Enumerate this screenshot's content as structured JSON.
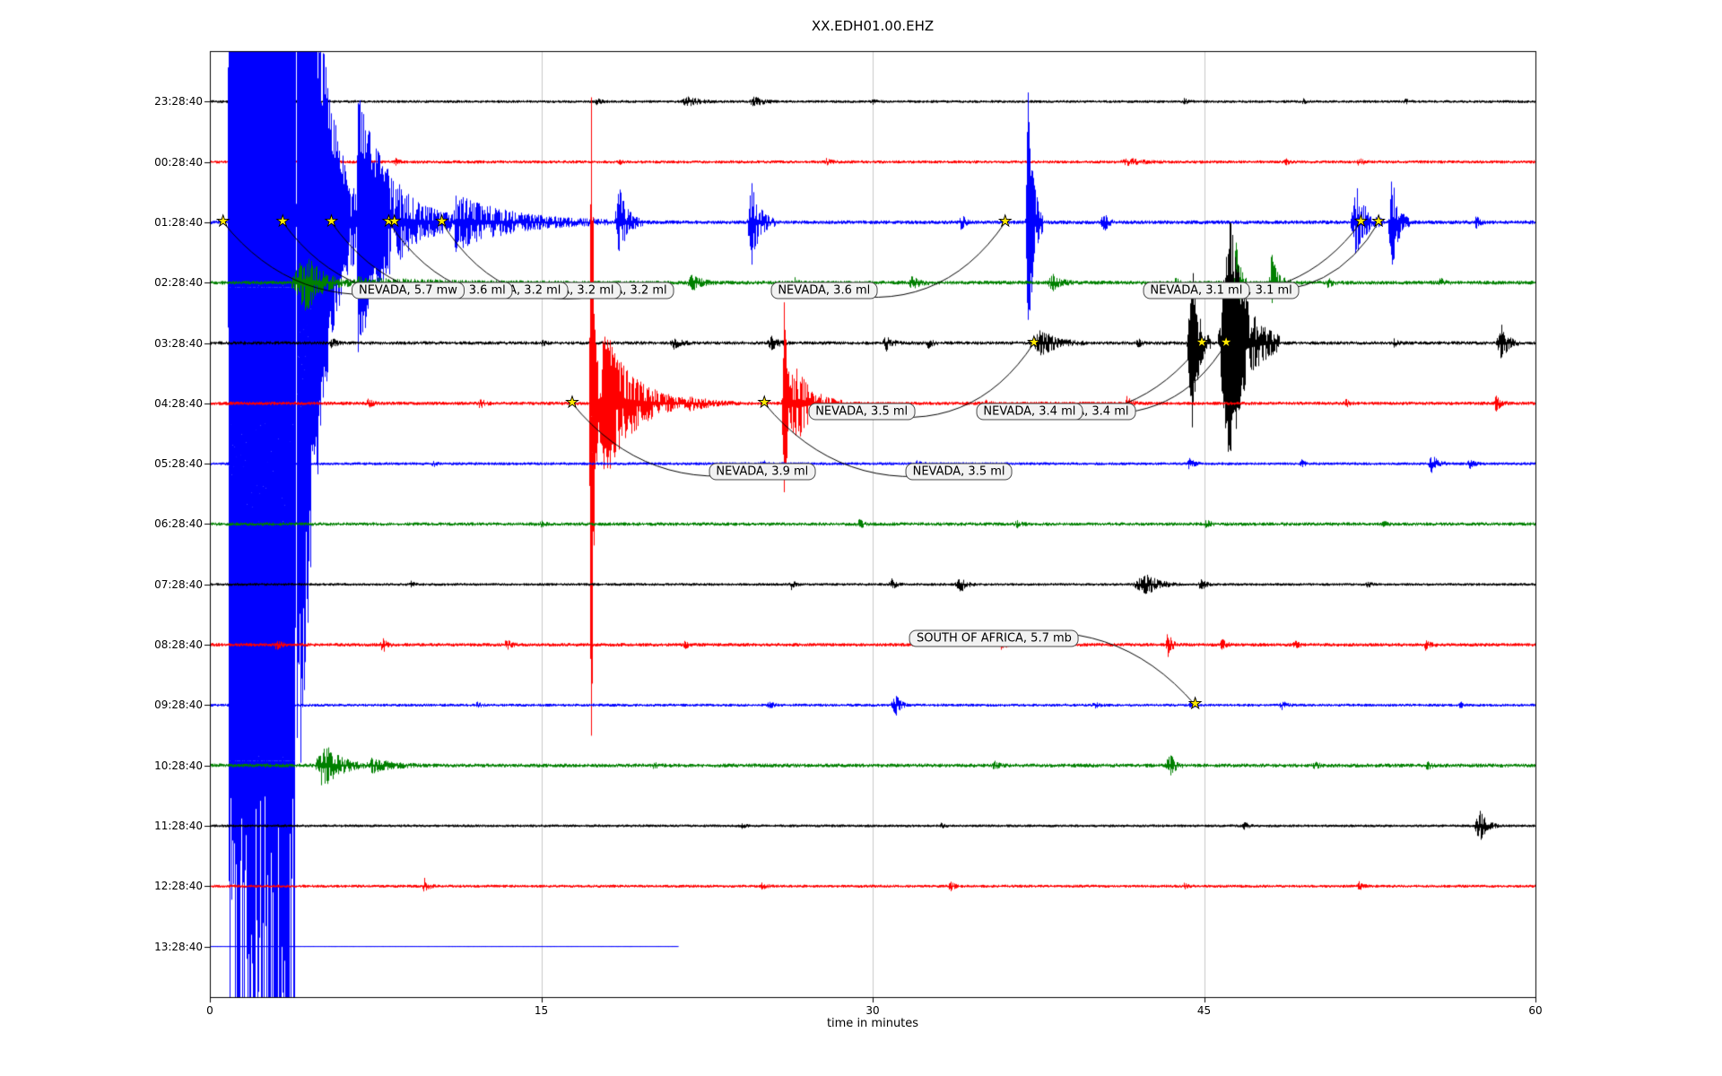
{
  "chart_data": {
    "type": "line",
    "subtype": "seismogram-dayplot",
    "title": "XX.EDH01.00.EHZ",
    "xlabel": "time in minutes",
    "x_range_minutes": [
      0,
      60
    ],
    "x_tick_minutes": [
      0,
      15,
      30,
      45,
      60
    ],
    "x_tick_labels": [
      "0",
      "15",
      "30",
      "45",
      "60"
    ],
    "x_gridlines": [
      15,
      30,
      45
    ],
    "trace_color_cycle": [
      "#000000",
      "#ff0000",
      "#0000ff",
      "#008000"
    ],
    "style": {
      "grid_color": "#c8c8c8",
      "star_color": "#ffe800",
      "annotation_bg": "#f2f2f2",
      "annotation_border": "#4a4a4a"
    },
    "rows": [
      {
        "label": "23:28:40",
        "color": "#000000",
        "base": 1.6,
        "bursts": [
          [
            17.4,
            17.5,
            18.1,
            3
          ],
          [
            21.3,
            21.6,
            23.3,
            4.5
          ],
          [
            24.4,
            24.6,
            25.7,
            5.5
          ],
          [
            29.9,
            30,
            30.4,
            2.5
          ],
          [
            44,
            44.1,
            44.6,
            3
          ],
          [
            49.4,
            49.5,
            49.9,
            2.5
          ],
          [
            54,
            54.1,
            54.6,
            2.5
          ]
        ]
      },
      {
        "label": "00:28:40",
        "color": "#ff0000",
        "base": 1.8,
        "bursts": [
          [
            8.3,
            8.4,
            8.9,
            3
          ],
          [
            18.4,
            18.5,
            18.9,
            2.5
          ],
          [
            27.8,
            27.9,
            28.4,
            3
          ],
          [
            41.2,
            41.6,
            43.2,
            3.5
          ],
          [
            48.6,
            48.7,
            49.1,
            2.5
          ],
          [
            51.9,
            52,
            52.5,
            4
          ]
        ]
      },
      {
        "label": "01:28:40",
        "color": "#0000ff",
        "base": 2.2,
        "bursts": [
          [
            0.8,
            0.9,
            3.9,
            1150,
            1
          ],
          [
            3.9,
            3.95,
            6.6,
            800
          ],
          [
            6.6,
            6.7,
            11,
            150
          ],
          [
            11,
            11.1,
            18,
            32
          ],
          [
            18.3,
            18.5,
            19.6,
            42
          ],
          [
            24.3,
            24.5,
            25.6,
            48
          ],
          [
            33.9,
            34,
            34.4,
            10
          ],
          [
            36.9,
            37,
            37.7,
            170
          ],
          [
            40.3,
            40.4,
            40.9,
            16
          ],
          [
            51.6,
            51.9,
            53.1,
            42
          ],
          [
            53.3,
            53.5,
            54.3,
            55
          ],
          [
            57.2,
            57.3,
            57.7,
            8
          ]
        ]
      },
      {
        "label": "02:28:40",
        "color": "#008000",
        "base": 2.2,
        "bursts": [
          [
            3.6,
            4.3,
            6.5,
            34
          ],
          [
            6.5,
            6.6,
            16,
            5
          ],
          [
            21.6,
            21.8,
            22.9,
            9
          ],
          [
            26.3,
            26.4,
            26.9,
            6
          ],
          [
            31.6,
            31.8,
            32.7,
            7
          ],
          [
            37.9,
            38.1,
            39.1,
            9
          ],
          [
            43.6,
            43.7,
            44.1,
            5
          ],
          [
            46.3,
            46.45,
            46.9,
            62
          ],
          [
            47.9,
            48.05,
            48.9,
            32
          ],
          [
            50.5,
            50.6,
            51.1,
            6
          ],
          [
            55.6,
            55.7,
            56.2,
            5
          ]
        ]
      },
      {
        "label": "03:28:40",
        "color": "#000000",
        "base": 2.0,
        "bursts": [
          [
            5.4,
            5.5,
            6.1,
            5
          ],
          [
            14.9,
            15,
            15.4,
            3
          ],
          [
            20.8,
            21,
            21.9,
            6
          ],
          [
            25.2,
            25.4,
            26.3,
            7
          ],
          [
            30.4,
            30.6,
            31.3,
            8
          ],
          [
            32.4,
            32.5,
            33.1,
            5
          ],
          [
            37.2,
            37.6,
            39.6,
            15
          ],
          [
            41.9,
            42,
            42.4,
            5
          ],
          [
            44.2,
            44.45,
            45.3,
            95
          ],
          [
            45.6,
            46.1,
            48.4,
            150
          ],
          [
            53.5,
            53.6,
            54,
            4
          ],
          [
            58.2,
            58.45,
            59.3,
            19
          ]
        ]
      },
      {
        "label": "04:28:40",
        "color": "#ff0000",
        "base": 2.0,
        "bursts": [
          [
            7,
            7.1,
            7.7,
            5
          ],
          [
            12.1,
            12.2,
            12.8,
            5
          ],
          [
            17.15,
            17.25,
            17.55,
            520
          ],
          [
            17.3,
            17.9,
            21.6,
            85
          ],
          [
            21.6,
            21.7,
            24,
            9
          ],
          [
            25.85,
            26,
            26.4,
            135
          ],
          [
            26.1,
            26.6,
            28.6,
            42
          ],
          [
            35,
            35.1,
            35.6,
            4
          ],
          [
            41.4,
            41.5,
            42.1,
            7
          ],
          [
            51.3,
            51.4,
            51.8,
            4
          ],
          [
            58.1,
            58.2,
            58.8,
            8
          ]
        ]
      },
      {
        "label": "05:28:40",
        "color": "#0000ff",
        "base": 1.7,
        "bursts": [
          [
            10,
            10.1,
            10.5,
            3
          ],
          [
            24.9,
            25,
            25.5,
            4
          ],
          [
            31.9,
            32,
            32.4,
            3
          ],
          [
            44.2,
            44.3,
            44.9,
            6
          ],
          [
            49.3,
            49.4,
            49.8,
            3.5
          ],
          [
            55.1,
            55.3,
            56,
            10
          ],
          [
            56.9,
            57,
            57.5,
            6
          ]
        ]
      },
      {
        "label": "06:28:40",
        "color": "#008000",
        "base": 2.0,
        "bursts": [
          [
            14.9,
            15,
            15.4,
            3
          ],
          [
            29.2,
            29.35,
            29.9,
            6
          ],
          [
            36.4,
            36.5,
            37,
            4
          ],
          [
            45,
            45.1,
            45.6,
            4
          ],
          [
            53,
            53.1,
            53.5,
            3
          ]
        ]
      },
      {
        "label": "07:28:40",
        "color": "#000000",
        "base": 1.6,
        "bursts": [
          [
            9,
            9.1,
            9.5,
            3
          ],
          [
            26.2,
            26.3,
            26.8,
            5
          ],
          [
            30.7,
            30.85,
            31.4,
            6
          ],
          [
            33.7,
            34,
            34.7,
            8
          ],
          [
            41.7,
            42.4,
            43.9,
            11
          ],
          [
            44.7,
            44.85,
            45.4,
            7
          ],
          [
            52.3,
            52.4,
            52.8,
            3
          ]
        ]
      },
      {
        "label": "08:28:40",
        "color": "#ff0000",
        "base": 2.0,
        "bursts": [
          [
            2.9,
            3,
            3.5,
            6
          ],
          [
            7.7,
            7.8,
            8.3,
            9
          ],
          [
            13.3,
            13.4,
            13.9,
            6
          ],
          [
            21.4,
            21.5,
            21.9,
            4
          ],
          [
            35.7,
            35.8,
            36.3,
            6
          ],
          [
            43.2,
            43.35,
            43.9,
            13
          ],
          [
            45.7,
            45.8,
            46.3,
            6
          ],
          [
            49,
            49.1,
            49.6,
            4
          ],
          [
            54.9,
            55,
            55.6,
            5
          ]
        ]
      },
      {
        "label": "09:28:40",
        "color": "#0000ff",
        "base": 1.7,
        "bursts": [
          [
            12,
            12.1,
            12.5,
            3
          ],
          [
            25.2,
            25.3,
            25.8,
            5
          ],
          [
            30.8,
            31.05,
            31.6,
            11
          ],
          [
            39.9,
            40,
            40.5,
            4
          ],
          [
            44.3,
            44.4,
            44.8,
            3
          ],
          [
            48.4,
            48.5,
            49,
            5
          ],
          [
            56.5,
            56.6,
            57,
            3
          ]
        ]
      },
      {
        "label": "10:28:40",
        "color": "#008000",
        "base": 2.2,
        "bursts": [
          [
            4.75,
            5.1,
            7.2,
            26
          ],
          [
            7.2,
            7.3,
            9.6,
            8
          ],
          [
            20,
            20.1,
            20.5,
            3
          ],
          [
            35.4,
            35.5,
            36,
            5
          ],
          [
            43.2,
            43.45,
            44.1,
            12
          ],
          [
            49.9,
            50,
            50.5,
            4
          ],
          [
            55,
            55.1,
            55.6,
            4
          ]
        ]
      },
      {
        "label": "11:28:40",
        "color": "#000000",
        "base": 1.6,
        "bursts": [
          [
            24,
            24.1,
            24.5,
            2.5
          ],
          [
            33,
            33.1,
            33.5,
            2.5
          ],
          [
            46.7,
            46.8,
            47.3,
            4
          ],
          [
            57.2,
            57.5,
            58.3,
            18
          ]
        ]
      },
      {
        "label": "12:28:40",
        "color": "#ff0000",
        "base": 1.7,
        "bursts": [
          [
            9.6,
            9.7,
            10.2,
            9
          ],
          [
            24.9,
            25,
            25.5,
            4
          ],
          [
            33.4,
            33.5,
            34,
            5
          ],
          [
            44,
            44.1,
            44.5,
            3
          ],
          [
            51.9,
            52,
            52.5,
            4
          ]
        ]
      },
      {
        "label": "13:28:40",
        "color": "#0000ff",
        "base": 0.45,
        "end": 21.2,
        "bursts": []
      }
    ],
    "stars": [
      {
        "row": 2,
        "m": 0.6
      },
      {
        "row": 2,
        "m": 3.3
      },
      {
        "row": 2,
        "m": 5.5
      },
      {
        "row": 2,
        "m": 8.1
      },
      {
        "row": 2,
        "m": 8.35
      },
      {
        "row": 2,
        "m": 10.5
      },
      {
        "row": 2,
        "m": 36.0
      },
      {
        "row": 2,
        "m": 52.1
      },
      {
        "row": 2,
        "m": 52.9
      },
      {
        "row": 4,
        "m": 37.3
      },
      {
        "row": 4,
        "m": 44.9
      },
      {
        "row": 4,
        "m": 46.0
      },
      {
        "row": 5,
        "m": 16.4
      },
      {
        "row": 5,
        "m": 25.1
      },
      {
        "row": 10,
        "m": 44.6
      }
    ],
    "annotations": [
      {
        "text": "NEVADA, 5.7 mw",
        "sr": 2,
        "sm": 0.6,
        "bm": 8.97,
        "br": 3.13,
        "z": 54,
        "rad": 0.3
      },
      {
        "text": "NEVADA, 3.6 ml",
        "sr": 2,
        "sm": 3.3,
        "bm": 11.3,
        "br": 3.13,
        "z": 53,
        "rad": 0.32
      },
      {
        "text": "NEVADA, 3.2 ml",
        "sr": 2,
        "sm": 5.5,
        "bm": 13.8,
        "br": 3.13,
        "z": 52,
        "rad": 0.34
      },
      {
        "text": "NEVADA, 3.2 ml",
        "sr": 2,
        "sm": 8.1,
        "bm": 16.2,
        "br": 3.13,
        "z": 51,
        "rad": 0.36
      },
      {
        "text": "NEVADA, 3.2 ml",
        "sr": 2,
        "sm": 10.5,
        "bm": 18.6,
        "br": 3.13,
        "z": 50,
        "rad": 0.38
      },
      {
        "text": "NEVADA, 3.6 ml",
        "sr": 2,
        "sm": 36.0,
        "bm": 27.8,
        "br": 3.13,
        "z": 40,
        "rad": -0.35
      },
      {
        "text": "NEVADA, 3.1 ml",
        "sr": 2,
        "sm": 52.1,
        "bm": 44.65,
        "br": 3.13,
        "z": 45,
        "rad": -0.3
      },
      {
        "text": "NEVADA, 3.1 ml",
        "sr": 2,
        "sm": 52.9,
        "bm": 46.9,
        "br": 3.13,
        "z": 44,
        "rad": -0.32
      },
      {
        "text": "NEVADA, 3.5 ml",
        "sr": 4,
        "sm": 37.3,
        "bm": 29.5,
        "br": 5.14,
        "z": 40,
        "rad": -0.35
      },
      {
        "text": "NEVADA, 3.4 ml",
        "sr": 4,
        "sm": 44.9,
        "bm": 37.1,
        "br": 5.14,
        "z": 45,
        "rad": -0.3
      },
      {
        "text": "NEVADA, 3.4 ml",
        "sr": 4,
        "sm": 46.0,
        "bm": 39.5,
        "br": 5.14,
        "z": 44,
        "rad": -0.33
      },
      {
        "text": "NEVADA, 3.9 ml",
        "sr": 5,
        "sm": 16.4,
        "bm": 25.0,
        "br": 6.13,
        "z": 40,
        "rad": 0.3
      },
      {
        "text": "NEVADA, 3.5 ml",
        "sr": 5,
        "sm": 25.1,
        "bm": 33.9,
        "br": 6.13,
        "z": 40,
        "rad": 0.3
      },
      {
        "text": "SOUTH OF AFRICA, 5.7 mb",
        "sr": 10,
        "sm": 44.6,
        "bm": 35.5,
        "br": 8.9,
        "z": 40,
        "rad": 0.3
      }
    ]
  }
}
